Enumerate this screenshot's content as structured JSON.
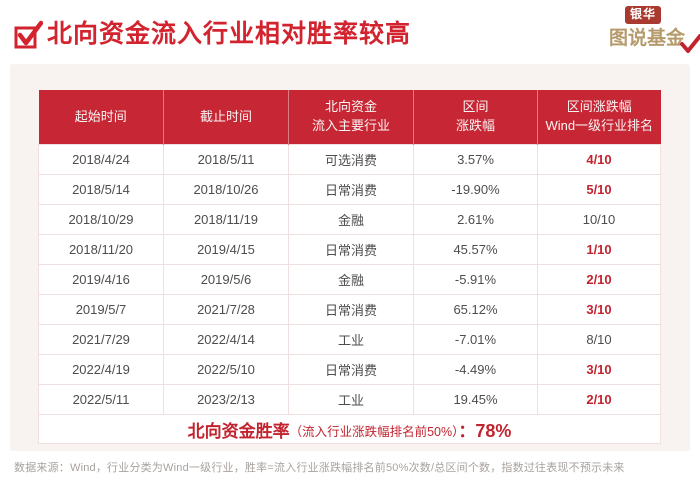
{
  "page": {
    "title": "北向资金流入行业相对胜率较高",
    "note": "数据来源：Wind，行业分类为Wind一级行业，胜率=流入行业涨跌幅排名前50%次数/总区间个数，指数过往表现不预示未来"
  },
  "logo": {
    "brand": "银华",
    "series": "图说基金"
  },
  "colors": {
    "header_red": "#C72634",
    "title_red": "#D2232E",
    "rank_red": "#C2242F",
    "card_bg": "#F8F2F1",
    "row_border": "#EFE0DF",
    "body_text": "#4D4D4D",
    "badge_red": "#A93A2F",
    "logo_gold": "#B59A6B",
    "note_grey": "#A8A29E"
  },
  "table": {
    "headers": [
      {
        "lines": [
          "起始时间"
        ]
      },
      {
        "lines": [
          "截止时间"
        ]
      },
      {
        "lines": [
          "北向资金",
          "流入主要行业"
        ]
      },
      {
        "lines": [
          "区间",
          "涨跌幅"
        ]
      },
      {
        "lines": [
          "区间涨跌幅",
          "Wind一级行业排名"
        ]
      }
    ],
    "rows": [
      {
        "start": "2018/4/24",
        "end": "2018/5/11",
        "industry": "可选消费",
        "change": "3.57%",
        "rank": "4/10",
        "rank_highlight": true
      },
      {
        "start": "2018/5/14",
        "end": "2018/10/26",
        "industry": "日常消费",
        "change": "-19.90%",
        "rank": "5/10",
        "rank_highlight": true
      },
      {
        "start": "2018/10/29",
        "end": "2018/11/19",
        "industry": "金融",
        "change": "2.61%",
        "rank": "10/10",
        "rank_highlight": false
      },
      {
        "start": "2018/11/20",
        "end": "2019/4/15",
        "industry": "日常消费",
        "change": "45.57%",
        "rank": "1/10",
        "rank_highlight": true
      },
      {
        "start": "2019/4/16",
        "end": "2019/5/6",
        "industry": "金融",
        "change": "-5.91%",
        "rank": "2/10",
        "rank_highlight": true
      },
      {
        "start": "2019/5/7",
        "end": "2021/7/28",
        "industry": "日常消费",
        "change": "65.12%",
        "rank": "3/10",
        "rank_highlight": true
      },
      {
        "start": "2021/7/29",
        "end": "2022/4/14",
        "industry": "工业",
        "change": "-7.01%",
        "rank": "8/10",
        "rank_highlight": false
      },
      {
        "start": "2022/4/19",
        "end": "2022/5/10",
        "industry": "日常消费",
        "change": "-4.49%",
        "rank": "3/10",
        "rank_highlight": true
      },
      {
        "start": "2022/5/11",
        "end": "2023/2/13",
        "industry": "工业",
        "change": "19.45%",
        "rank": "2/10",
        "rank_highlight": true
      }
    ],
    "summary": {
      "label": "北向资金胜率",
      "paren": "（流入行业涨跌幅排名前50%）",
      "colon": "：",
      "value": "78%"
    }
  }
}
